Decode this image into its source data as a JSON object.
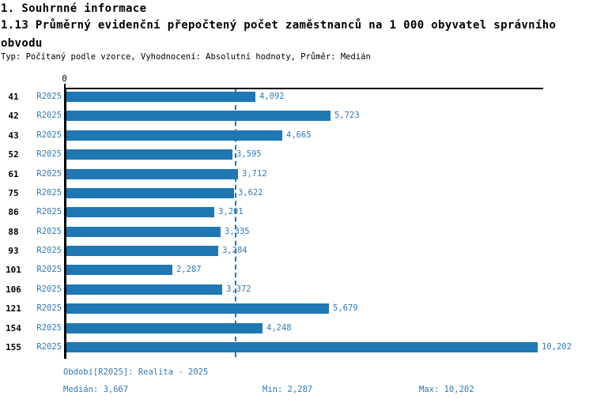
{
  "header": {
    "section_title": "1. Souhrnné informace",
    "indicator_title": "1.13 Průměrný evidenční přepočtený počet zaměstnanců na 1 000 obyvatel správního obvodu",
    "meta": "Typ: Počítaný podle vzorce, Vyhodnocení: Absolutní hodnoty, Průměr: Medián"
  },
  "chart_data": {
    "type": "bar",
    "orientation": "horizontal",
    "title": "1.13 Průměrný evidenční přepočtený počet zaměstnanců na 1 000 obyvatel správního obvodu",
    "categories": [
      "41",
      "42",
      "43",
      "52",
      "61",
      "75",
      "86",
      "88",
      "93",
      "101",
      "106",
      "121",
      "154",
      "155"
    ],
    "row_series_label": "R2025",
    "values": [
      4092,
      5723,
      4665,
      3595,
      3712,
      3622,
      3201,
      3335,
      3284,
      2287,
      3372,
      5679,
      4248,
      10202
    ],
    "value_labels": [
      "4,092",
      "5,723",
      "4,665",
      "3,595",
      "3,712",
      "3,622",
      "3,201",
      "3,335",
      "3,284",
      "2,287",
      "3,372",
      "5,679",
      "4,248",
      "10,202"
    ],
    "xlim": [
      0,
      10202
    ],
    "x_tick_labels": [
      "0"
    ],
    "median": {
      "value": 3667,
      "label": "3,667"
    },
    "min": {
      "value": 2287,
      "label": "2,287"
    },
    "max": {
      "value": 10202,
      "label": "10,202"
    },
    "grid": false,
    "legend_position": "none",
    "colors": {
      "bar": "#1f77b4",
      "blue_text": "#2e79b9",
      "axis": "#000000"
    }
  },
  "footer": {
    "period": "Období[R2025]: Realita - 2025",
    "median": "Medián: 3,667",
    "min": "Min: 2,287",
    "max": "Max: 10,202"
  }
}
